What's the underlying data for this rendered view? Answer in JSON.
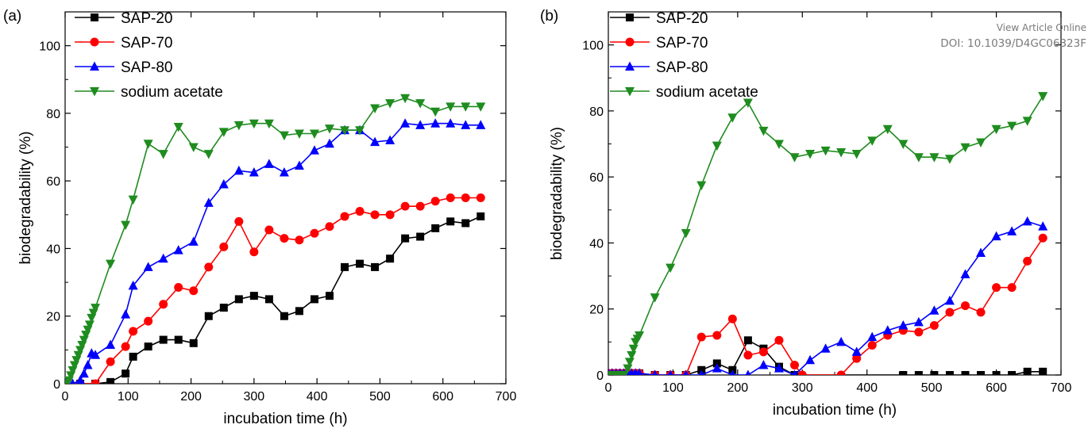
{
  "watermark": {
    "line1": "View Article Online",
    "line2": "DOI: 10.1039/D4GC06323F"
  },
  "chart_data": [
    {
      "type": "line",
      "panel_label": "(a)",
      "xlabel": "incubation time (h)",
      "ylabel": "biodegradability (%)",
      "xlim": [
        0,
        700
      ],
      "ylim": [
        0,
        110
      ],
      "xticks": [
        0,
        100,
        200,
        300,
        400,
        500,
        600,
        700
      ],
      "yticks": [
        0,
        20,
        40,
        60,
        80,
        100
      ],
      "legend_position": "top-left",
      "series": [
        {
          "name": "SAP-20",
          "color": "#000000",
          "marker": "square",
          "x": [
            0,
            24,
            48,
            72,
            96,
            108,
            132,
            156,
            180,
            204,
            228,
            252,
            276,
            300,
            324,
            348,
            372,
            396,
            420,
            444,
            468,
            492,
            516,
            540,
            564,
            588,
            612,
            636,
            660
          ],
          "y": [
            0,
            0,
            0,
            0.5,
            3,
            8,
            11,
            13,
            13,
            12,
            20,
            22.5,
            25,
            26,
            25,
            20,
            21.5,
            25,
            26,
            34.5,
            35.5,
            34.5,
            37,
            43,
            43.5,
            46,
            48,
            47.5,
            49.5
          ]
        },
        {
          "name": "SAP-70",
          "color": "#ff0000",
          "marker": "circle",
          "x": [
            0,
            24,
            48,
            72,
            96,
            108,
            132,
            156,
            180,
            204,
            228,
            252,
            276,
            300,
            324,
            348,
            372,
            396,
            420,
            444,
            468,
            492,
            516,
            540,
            564,
            588,
            612,
            636,
            660
          ],
          "y": [
            0,
            0,
            0,
            6.5,
            11,
            15.5,
            18.5,
            23.5,
            28.5,
            27.5,
            34.5,
            40.5,
            48,
            39,
            45.5,
            43,
            42.5,
            44.5,
            46.5,
            49.5,
            51,
            50,
            50,
            52.5,
            52.5,
            54,
            55,
            55,
            55
          ]
        },
        {
          "name": "SAP-80",
          "color": "#0000ff",
          "marker": "triangle-up",
          "x": [
            0,
            12,
            24,
            30,
            36,
            42,
            48,
            72,
            96,
            108,
            132,
            156,
            180,
            204,
            228,
            252,
            276,
            300,
            324,
            348,
            372,
            396,
            420,
            444,
            468,
            492,
            516,
            540,
            564,
            588,
            612,
            636,
            660
          ],
          "y": [
            0,
            0,
            1,
            3,
            5.5,
            9,
            8.5,
            11.5,
            20.5,
            29,
            34.5,
            37,
            39.5,
            42,
            53.5,
            59,
            63,
            62.5,
            65,
            62.5,
            64.5,
            69,
            71,
            75,
            75,
            71.5,
            72,
            77,
            76.5,
            77,
            77,
            76.5,
            76.5
          ]
        },
        {
          "name": "sodium acetate",
          "color": "#1f8c1f",
          "marker": "triangle-down",
          "x": [
            0,
            6,
            9,
            12,
            15,
            18,
            21,
            24,
            27,
            30,
            33,
            36,
            39,
            42,
            45,
            48,
            72,
            96,
            108,
            132,
            156,
            180,
            204,
            228,
            252,
            276,
            300,
            324,
            348,
            372,
            396,
            420,
            444,
            468,
            492,
            516,
            540,
            564,
            588,
            612,
            636,
            660
          ],
          "y": [
            0,
            1,
            2.5,
            4,
            5.5,
            7,
            8.5,
            10,
            11.5,
            13,
            14.5,
            16,
            17.5,
            19.5,
            21,
            22.5,
            35.5,
            47,
            54.5,
            71,
            68,
            76,
            70,
            68,
            74.5,
            76.5,
            77,
            77,
            73.5,
            74,
            74,
            75.5,
            75,
            75,
            81.5,
            83,
            84.5,
            83,
            80.5,
            82,
            82,
            82
          ]
        }
      ]
    },
    {
      "type": "line",
      "panel_label": "(b)",
      "xlabel": "incubation time (h)",
      "ylabel": "biodegradability (%)",
      "xlim": [
        0,
        700
      ],
      "ylim": [
        0,
        110
      ],
      "xticks": [
        0,
        100,
        200,
        300,
        400,
        500,
        600,
        700
      ],
      "yticks": [
        0,
        20,
        40,
        60,
        80,
        100
      ],
      "legend_position": "top-left",
      "series": [
        {
          "name": "SAP-20",
          "color": "#000000",
          "marker": "square",
          "x": [
            0,
            6,
            12,
            18,
            24,
            30,
            36,
            42,
            48,
            72,
            96,
            120,
            144,
            168,
            192,
            216,
            240,
            264,
            288,
            456,
            480,
            504,
            528,
            552,
            576,
            600,
            624,
            648,
            672
          ],
          "y": [
            0.5,
            0.5,
            0.5,
            0.5,
            0.5,
            0.5,
            0.5,
            0.5,
            0.5,
            0,
            0,
            0,
            1.5,
            3.5,
            1.5,
            10.5,
            8,
            2.5,
            0,
            0,
            0,
            0,
            0,
            0,
            0,
            0,
            0,
            1,
            1
          ]
        },
        {
          "name": "SAP-70",
          "color": "#ff0000",
          "marker": "circle",
          "x": [
            0,
            6,
            12,
            18,
            24,
            30,
            36,
            42,
            48,
            72,
            96,
            120,
            144,
            168,
            192,
            216,
            240,
            264,
            288,
            300,
            360,
            384,
            408,
            432,
            456,
            480,
            504,
            528,
            552,
            576,
            600,
            624,
            648,
            672
          ],
          "y": [
            0.5,
            0.5,
            0.5,
            0.5,
            0.5,
            0.5,
            0.5,
            0.5,
            0.5,
            0,
            0,
            0,
            11.5,
            12,
            17,
            6,
            7,
            10.5,
            3,
            0,
            0,
            5,
            9,
            12,
            13.5,
            13,
            15,
            19,
            21,
            19,
            26.5,
            26.5,
            34.5,
            41.5
          ]
        },
        {
          "name": "SAP-80",
          "color": "#0000ff",
          "marker": "triangle-up",
          "x": [
            0,
            6,
            12,
            18,
            24,
            30,
            36,
            42,
            48,
            72,
            96,
            120,
            144,
            168,
            192,
            216,
            240,
            264,
            288,
            312,
            336,
            360,
            384,
            408,
            432,
            456,
            480,
            504,
            528,
            552,
            576,
            600,
            624,
            648,
            672
          ],
          "y": [
            0.5,
            0.5,
            0.5,
            0.5,
            0.5,
            0.5,
            0.5,
            0.5,
            0.5,
            0,
            0,
            0,
            0,
            2,
            0,
            0,
            3,
            2,
            0,
            4.5,
            8,
            10,
            7,
            11.5,
            13.5,
            15,
            16,
            19.5,
            22.5,
            30.5,
            37,
            42,
            43.5,
            46.5,
            45
          ]
        },
        {
          "name": "sodium acetate",
          "color": "#1f8c1f",
          "marker": "triangle-down",
          "x": [
            0,
            6,
            12,
            18,
            24,
            30,
            33,
            36,
            39,
            42,
            45,
            48,
            72,
            96,
            120,
            144,
            168,
            192,
            216,
            240,
            264,
            288,
            312,
            336,
            360,
            384,
            408,
            432,
            456,
            480,
            504,
            528,
            552,
            576,
            600,
            624,
            648,
            672
          ],
          "y": [
            0,
            0,
            0,
            0,
            0,
            2,
            4,
            6,
            8,
            10,
            11,
            12,
            23.5,
            32.5,
            43,
            57.5,
            69.5,
            78,
            82.5,
            74,
            70,
            66,
            67,
            68,
            67.5,
            67,
            71,
            74.5,
            70,
            66,
            66,
            65.5,
            69,
            70.5,
            74.5,
            75.5,
            77,
            84.5
          ]
        }
      ]
    }
  ]
}
